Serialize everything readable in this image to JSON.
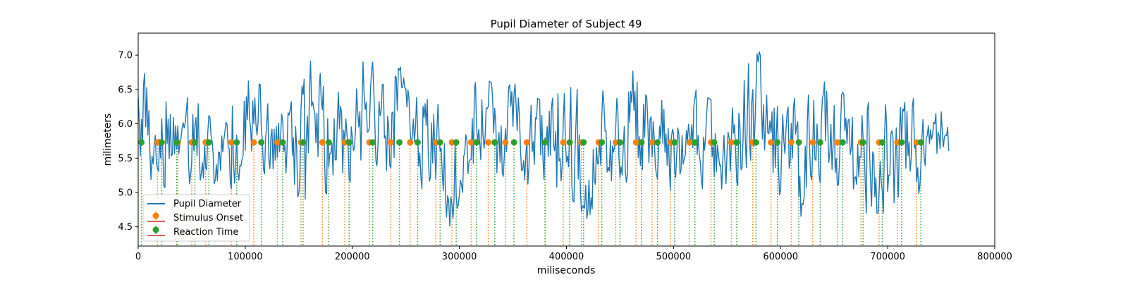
{
  "chart_data": {
    "type": "line",
    "title": "Pupil Diameter of Subject 49",
    "xlabel": "miliseconds",
    "ylabel": "milimeters",
    "xlim": [
      0,
      800000
    ],
    "ylim": [
      4.22,
      7.32
    ],
    "xticks": [
      0,
      100000,
      200000,
      300000,
      400000,
      500000,
      600000,
      700000,
      800000
    ],
    "xtick_labels": [
      "0",
      "100000",
      "200000",
      "300000",
      "400000",
      "500000",
      "600000",
      "700000",
      "800000"
    ],
    "yticks": [
      4.5,
      5.0,
      5.5,
      6.0,
      6.5,
      7.0
    ],
    "ytick_labels": [
      "4.5",
      "5.0",
      "5.5",
      "6.0",
      "6.5",
      "7.0"
    ],
    "grid": false,
    "legend_position": "lower-left",
    "marker_level": 5.73,
    "series": [
      {
        "name": "Pupil Diameter",
        "kind": "line",
        "color": "#1f77b4",
        "x_range": [
          0,
          757000
        ],
        "sample_step": 1000,
        "envelope": [
          [
            0,
            5.0,
            7.05
          ],
          [
            10000,
            4.95,
            6.6
          ],
          [
            20000,
            5.1,
            6.3
          ],
          [
            30000,
            5.0,
            6.4
          ],
          [
            40000,
            5.2,
            6.2
          ],
          [
            50000,
            5.1,
            6.5
          ],
          [
            60000,
            5.2,
            6.3
          ],
          [
            70000,
            5.0,
            6.0
          ],
          [
            80000,
            4.95,
            5.9
          ],
          [
            90000,
            5.1,
            6.5
          ],
          [
            100000,
            5.3,
            6.8
          ],
          [
            110000,
            5.5,
            6.9
          ],
          [
            120000,
            5.2,
            6.3
          ],
          [
            130000,
            5.2,
            6.2
          ],
          [
            140000,
            5.3,
            6.5
          ],
          [
            150000,
            4.5,
            6.4
          ],
          [
            160000,
            5.0,
            6.9
          ],
          [
            170000,
            5.1,
            7.05
          ],
          [
            180000,
            4.9,
            6.6
          ],
          [
            190000,
            4.8,
            6.4
          ],
          [
            200000,
            5.0,
            6.3
          ],
          [
            210000,
            5.2,
            6.9
          ],
          [
            220000,
            5.3,
            6.9
          ],
          [
            230000,
            5.3,
            6.7
          ],
          [
            240000,
            5.4,
            7.05
          ],
          [
            250000,
            5.3,
            6.6
          ],
          [
            260000,
            5.1,
            6.5
          ],
          [
            270000,
            5.0,
            6.4
          ],
          [
            280000,
            4.9,
            6.3
          ],
          [
            290000,
            4.4,
            6.0
          ],
          [
            300000,
            4.8,
            6.3
          ],
          [
            310000,
            5.2,
            6.5
          ],
          [
            320000,
            5.3,
            6.7
          ],
          [
            330000,
            5.2,
            6.6
          ],
          [
            340000,
            5.2,
            6.5
          ],
          [
            350000,
            5.3,
            6.6
          ],
          [
            360000,
            5.2,
            6.5
          ],
          [
            370000,
            5.0,
            6.4
          ],
          [
            380000,
            4.9,
            6.3
          ],
          [
            390000,
            4.8,
            6.4
          ],
          [
            400000,
            5.0,
            6.6
          ],
          [
            410000,
            4.8,
            6.5
          ],
          [
            420000,
            4.6,
            6.2
          ],
          [
            430000,
            5.0,
            6.4
          ],
          [
            440000,
            5.1,
            6.6
          ],
          [
            450000,
            5.0,
            6.5
          ],
          [
            460000,
            5.1,
            6.8
          ],
          [
            470000,
            5.2,
            6.9
          ],
          [
            480000,
            5.3,
            6.6
          ],
          [
            490000,
            5.1,
            6.4
          ],
          [
            500000,
            5.0,
            6.3
          ],
          [
            510000,
            5.1,
            6.2
          ],
          [
            520000,
            5.0,
            6.5
          ],
          [
            530000,
            5.0,
            6.4
          ],
          [
            540000,
            5.1,
            6.3
          ],
          [
            550000,
            5.0,
            6.3
          ],
          [
            560000,
            5.1,
            6.8
          ],
          [
            570000,
            5.2,
            6.9
          ],
          [
            580000,
            5.1,
            7.05
          ],
          [
            590000,
            5.0,
            6.5
          ],
          [
            600000,
            4.9,
            6.2
          ],
          [
            610000,
            4.8,
            6.4
          ],
          [
            620000,
            4.6,
            6.3
          ],
          [
            630000,
            5.0,
            6.5
          ],
          [
            640000,
            5.2,
            6.6
          ],
          [
            650000,
            5.1,
            6.7
          ],
          [
            660000,
            5.1,
            6.4
          ],
          [
            670000,
            5.0,
            6.3
          ],
          [
            680000,
            4.7,
            6.4
          ],
          [
            690000,
            4.7,
            6.5
          ],
          [
            700000,
            4.7,
            6.3
          ],
          [
            710000,
            4.8,
            6.4
          ],
          [
            720000,
            5.0,
            6.6
          ],
          [
            730000,
            4.9,
            6.2
          ],
          [
            740000,
            4.7,
            6.0
          ],
          [
            750000,
            5.5,
            6.3
          ],
          [
            757000,
            5.6,
            6.0
          ]
        ]
      },
      {
        "name": "Stimulus Onset",
        "kind": "events",
        "color": "#ff7f0e",
        "x": [
          18000,
          37000,
          50000,
          63000,
          87000,
          108000,
          130000,
          152000,
          172000,
          193000,
          216000,
          236000,
          254000,
          278000,
          293000,
          311000,
          327000,
          343000,
          363000,
          380000,
          397000,
          414000,
          430000,
          446000,
          465000,
          480000,
          497000,
          515000,
          535000,
          554000,
          574000,
          591000,
          610000,
          630000,
          653000,
          675000,
          692000,
          709000,
          727000
        ]
      },
      {
        "name": "Reaction Time",
        "kind": "events",
        "color": "#2ca02c",
        "x": [
          3000,
          22000,
          36000,
          53000,
          66000,
          92000,
          115000,
          135000,
          154000,
          178000,
          197000,
          219000,
          244000,
          261000,
          282000,
          297000,
          316000,
          333000,
          351000,
          380000,
          403000,
          416000,
          433000,
          450000,
          470000,
          485000,
          501000,
          520000,
          538000,
          559000,
          577000,
          597000,
          617000,
          637000,
          658000,
          677000,
          695000,
          713000,
          731000
        ]
      }
    ]
  }
}
